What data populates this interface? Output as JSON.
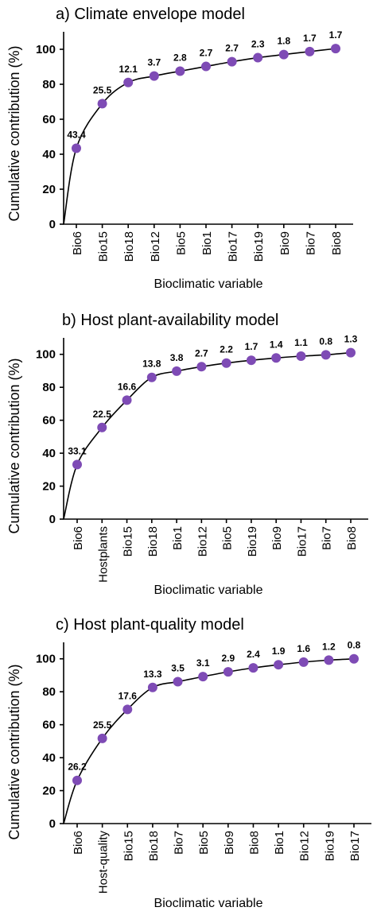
{
  "chart_data": [
    {
      "type": "line",
      "title": "a) Climate envelope model",
      "ylabel": "Cumulative contribution (%)",
      "xlabel": "Bioclimatic variable",
      "ylim": [
        0,
        110
      ],
      "yticks": [
        0,
        20,
        40,
        60,
        80,
        100
      ],
      "categories": [
        "Bio6",
        "Bio15",
        "Bio18",
        "Bio12",
        "Bio5",
        "Bio1",
        "Bio17",
        "Bio19",
        "Bio9",
        "Bio7",
        "Bio8"
      ],
      "contributions": [
        "43.4",
        "25.5",
        "12.1",
        "3.7",
        "2.8",
        "2.7",
        "2.7",
        "2.3",
        "1.8",
        "1.7",
        "1.7"
      ],
      "values": [
        43.4,
        68.9,
        81.0,
        84.7,
        87.5,
        90.2,
        92.9,
        95.2,
        97.0,
        98.7,
        100.4
      ],
      "point_color": "#7e4bb5"
    },
    {
      "type": "line",
      "title": "b) Host plant-availability model",
      "ylabel": "Cumulative contribution (%)",
      "xlabel": "Bioclimatic variable",
      "ylim": [
        0,
        110
      ],
      "yticks": [
        0,
        20,
        40,
        60,
        80,
        100
      ],
      "categories": [
        "Bio6",
        "Hostplants",
        "Bio15",
        "Bio18",
        "Bio1",
        "Bio12",
        "Bio5",
        "Bio19",
        "Bio9",
        "Bio17",
        "Bio7",
        "Bio8"
      ],
      "contributions": [
        "33.1",
        "22.5",
        "16.6",
        "13.8",
        "3.8",
        "2.7",
        "2.2",
        "1.7",
        "1.4",
        "1.1",
        "0.8",
        "1.3"
      ],
      "values": [
        33.1,
        55.6,
        72.2,
        86.0,
        89.8,
        92.5,
        94.7,
        96.4,
        97.8,
        98.9,
        99.7,
        101.0
      ],
      "point_color": "#7e4bb5"
    },
    {
      "type": "line",
      "title": "c) Host plant-quality model",
      "ylabel": "Cumulative contribution (%)",
      "xlabel": "Bioclimatic variable",
      "ylim": [
        0,
        110
      ],
      "yticks": [
        0,
        20,
        40,
        60,
        80,
        100
      ],
      "categories": [
        "Bio6",
        "Host-quality",
        "Bio15",
        "Bio18",
        "Bio7",
        "Bio5",
        "Bio9",
        "Bio8",
        "Bio1",
        "Bio12",
        "Bio19",
        "Bio17"
      ],
      "contributions": [
        "26.2",
        "25.5",
        "17.6",
        "13.3",
        "3.5",
        "3.1",
        "2.9",
        "2.4",
        "1.9",
        "1.6",
        "1.2",
        "0.8"
      ],
      "values": [
        26.2,
        51.7,
        69.3,
        82.6,
        86.1,
        89.2,
        92.1,
        94.5,
        96.4,
        98.0,
        99.2,
        100.0
      ],
      "point_color": "#7e4bb5"
    }
  ]
}
